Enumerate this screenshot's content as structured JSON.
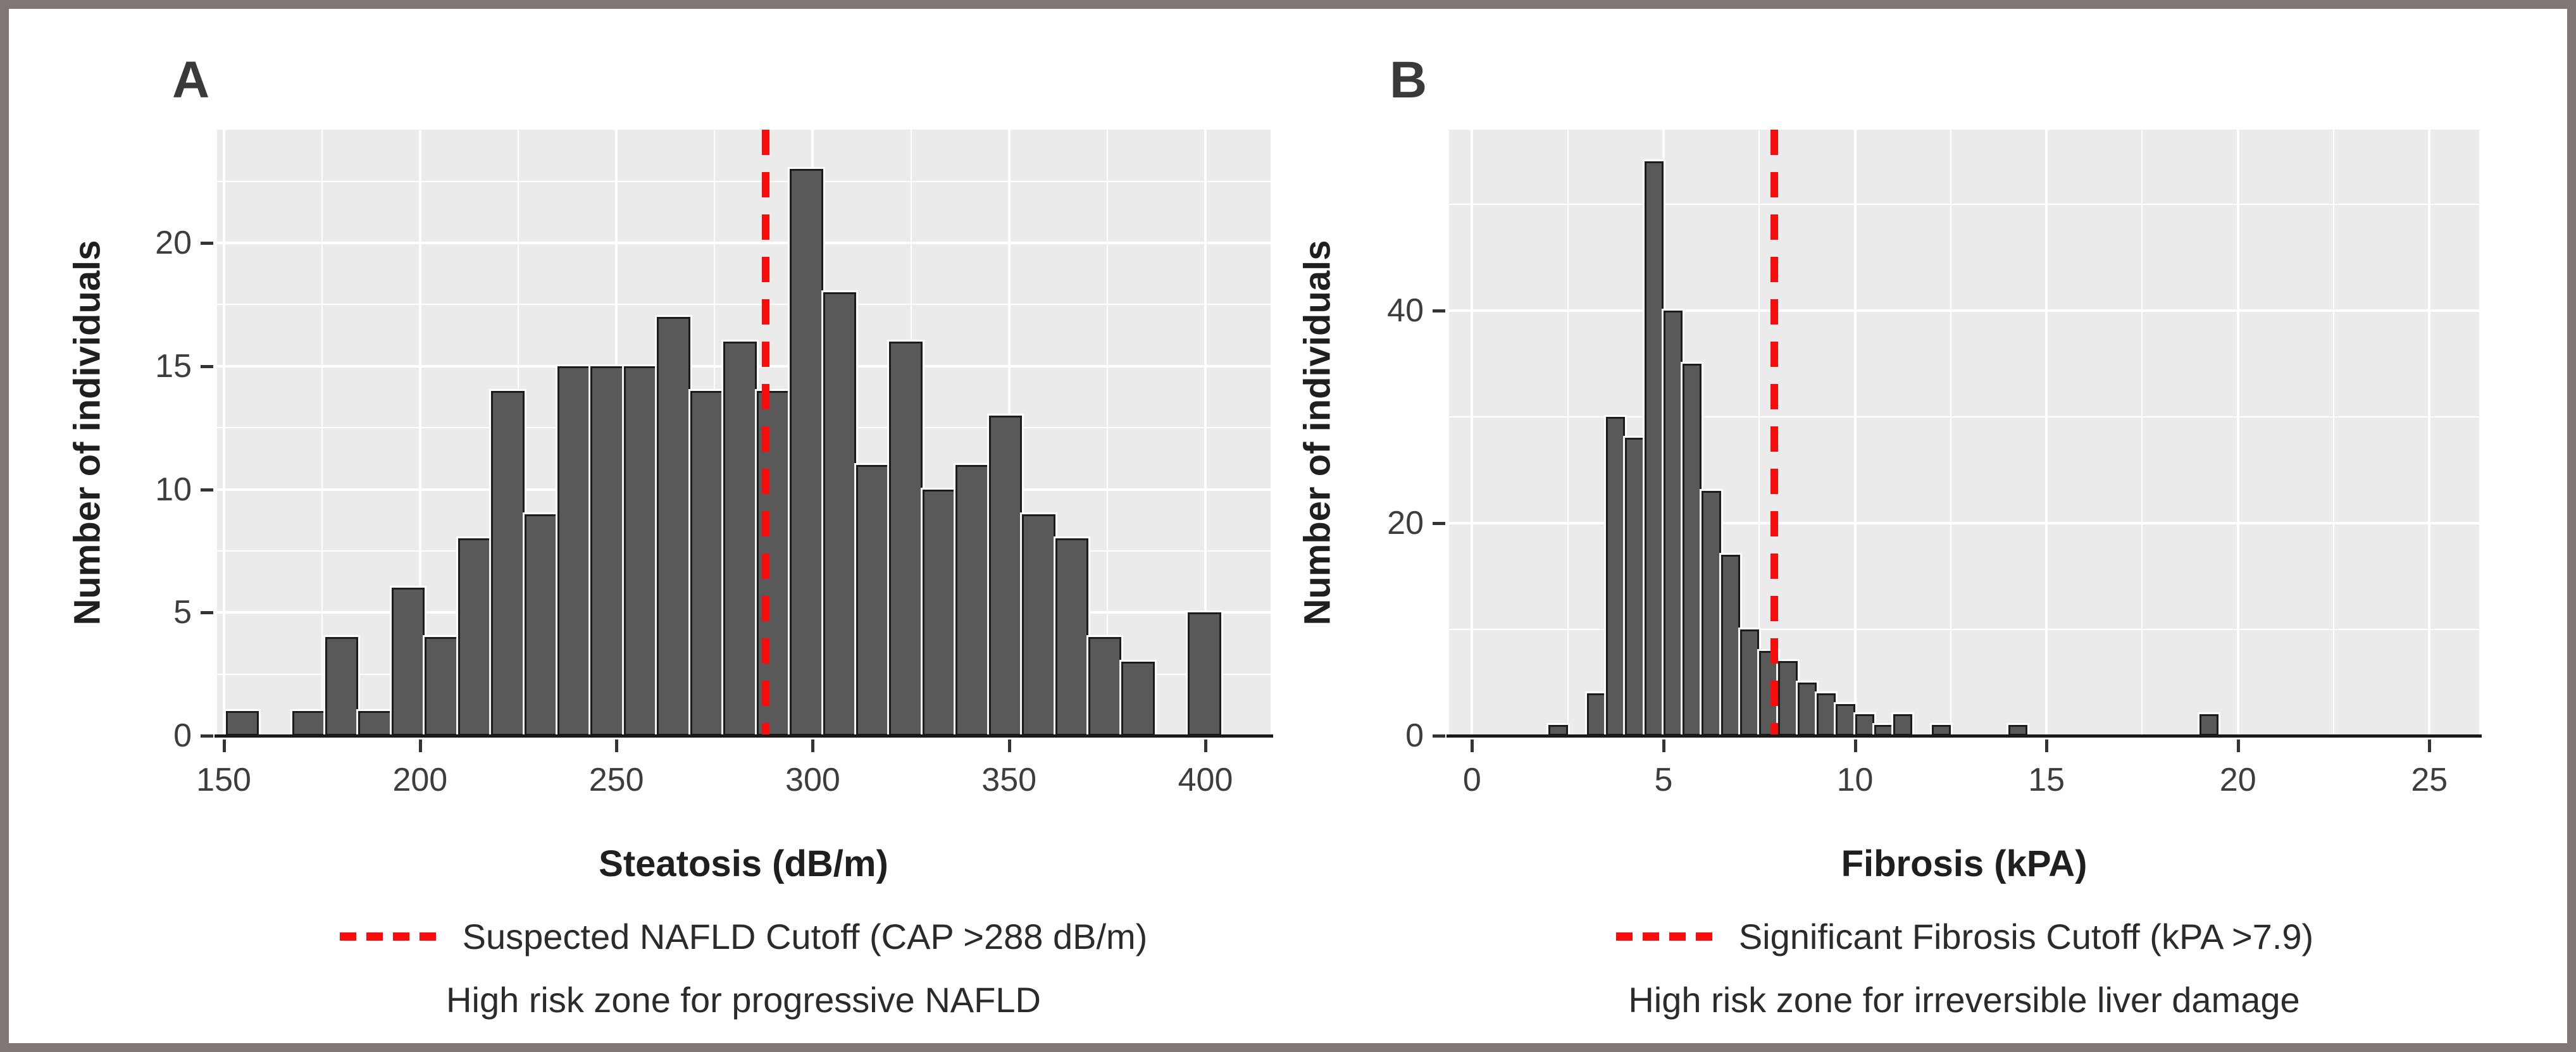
{
  "figure": {
    "background": "#ffffff",
    "border_color": "#807676",
    "plot_background": "#ebebeb",
    "gridline_color": "#ffffff",
    "bar_fill": "#595959",
    "bar_border": "#1c1c1c",
    "cutoff_red": "#f80c0c",
    "shared_ylabel": "Number of individuals"
  },
  "chart_data": [
    {
      "type": "bar",
      "subtype": "histogram",
      "panel_label": "A",
      "xlabel": "Steatosis (dB/m)",
      "ylabel": "Number of individuals",
      "x_ticks": [
        150,
        200,
        250,
        300,
        350,
        400
      ],
      "y_ticks": [
        0,
        5,
        10,
        15,
        20
      ],
      "xlim": [
        148.3,
        416.6
      ],
      "ylim": [
        0,
        24.6
      ],
      "grid": "major+minor",
      "bin_start": 150.5,
      "bin_width": 8.45,
      "values": [
        1,
        0,
        1,
        4,
        1,
        6,
        4,
        8,
        14,
        9,
        15,
        15,
        15,
        17,
        14,
        16,
        14,
        23,
        18,
        11,
        16,
        10,
        11,
        13,
        9,
        8,
        4,
        3,
        0,
        5
      ],
      "cutoff": {
        "value": 288,
        "legend_label": "Suspected NAFLD Cutoff (CAP >288 dB/m)",
        "note": "High risk zone for progressive NAFLD",
        "color": "#f80c0c",
        "style": "dashed"
      }
    },
    {
      "type": "bar",
      "subtype": "histogram",
      "panel_label": "B",
      "xlabel": "Fibrosis (kPA)",
      "ylabel": "Number of individuals",
      "x_ticks": [
        0,
        5,
        10,
        15,
        20,
        25
      ],
      "y_ticks": [
        0,
        20,
        40
      ],
      "xlim": [
        -0.6,
        26.3
      ],
      "ylim": [
        0,
        57
      ],
      "grid": "major+minor",
      "bin_start": 2.0,
      "bin_width": 0.5,
      "values": [
        1,
        0,
        4,
        30,
        28,
        54,
        40,
        35,
        23,
        17,
        10,
        8,
        7,
        5,
        4,
        3,
        2,
        1,
        2,
        0,
        1,
        0,
        0,
        0,
        1,
        0,
        0,
        0,
        0,
        0,
        0,
        0,
        0,
        0,
        2
      ],
      "cutoff": {
        "value": 7.9,
        "legend_label": "Significant Fibrosis Cutoff (kPA >7.9)",
        "note": "High risk zone for irreversible liver damage",
        "color": "#f80c0c",
        "style": "dashed"
      }
    }
  ]
}
